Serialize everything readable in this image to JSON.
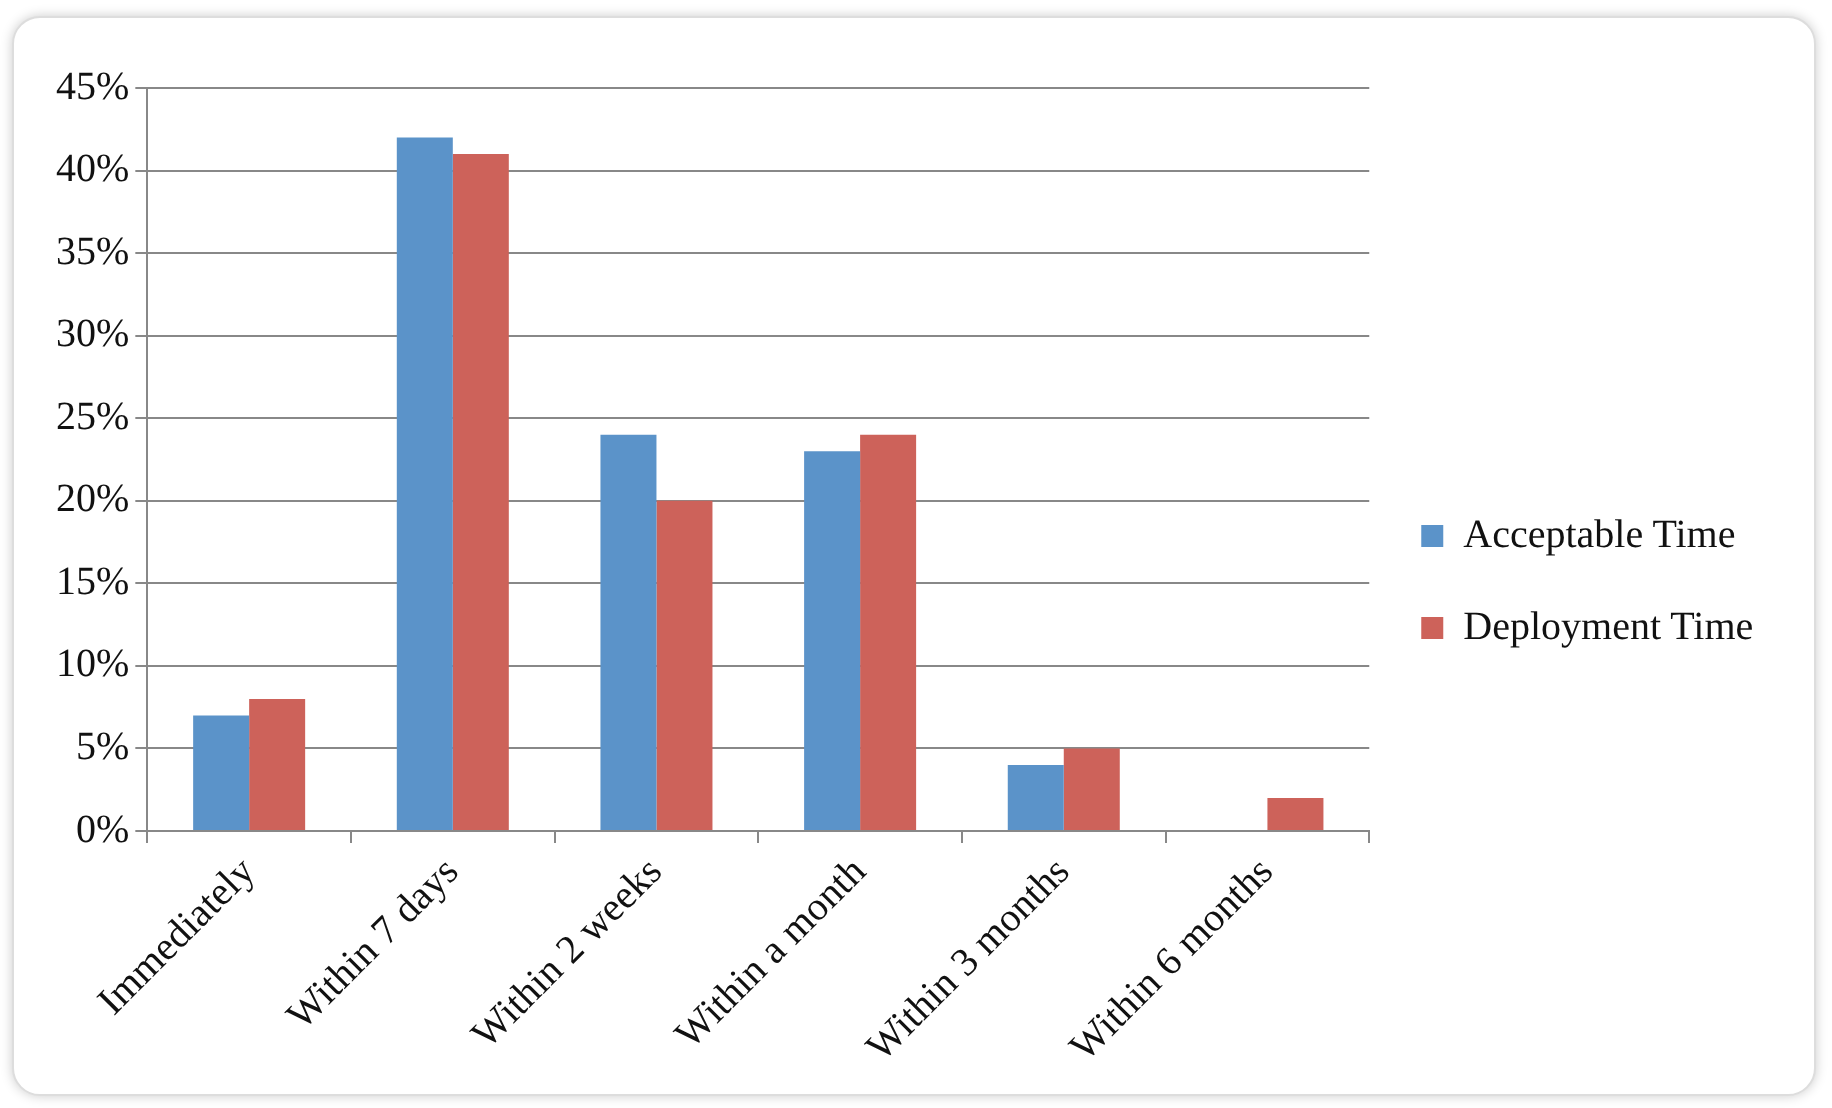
{
  "chart_data": {
    "type": "bar",
    "categories": [
      "Immediately",
      "Within 7 days",
      "Within 2 weeks",
      "Within a month",
      "Within 3 months",
      "Within 6 months"
    ],
    "series": [
      {
        "name": "Acceptable Time",
        "color": "#5b93c9",
        "values": [
          7,
          42,
          24,
          23,
          4,
          0
        ]
      },
      {
        "name": "Deployment Time",
        "color": "#cd625a",
        "values": [
          8,
          41,
          20,
          24,
          5,
          2
        ]
      }
    ],
    "ylim": [
      0,
      45
    ],
    "yticks": [
      {
        "value": 0,
        "label": "0%"
      },
      {
        "value": 5,
        "label": "5%"
      },
      {
        "value": 10,
        "label": "10%"
      },
      {
        "value": 15,
        "label": "15%"
      },
      {
        "value": 20,
        "label": "20%"
      },
      {
        "value": 25,
        "label": "25%"
      },
      {
        "value": 30,
        "label": "30%"
      },
      {
        "value": 35,
        "label": "35%"
      },
      {
        "value": 40,
        "label": "40%"
      },
      {
        "value": 45,
        "label": "45%"
      }
    ],
    "grid": "y",
    "legend": "right"
  }
}
